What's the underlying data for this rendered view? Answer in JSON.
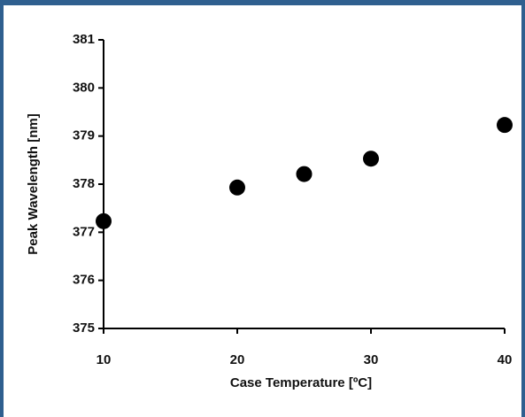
{
  "chart_data": {
    "type": "scatter",
    "x_label": "Case Temperature [ºC]",
    "y_label": "Peak Wavelength [nm]",
    "x": [
      10,
      20,
      25,
      30,
      40
    ],
    "values": [
      377.23,
      377.93,
      378.21,
      378.53,
      379.23
    ],
    "color": "#000000",
    "xlim": [
      10,
      40
    ],
    "xticks": [
      10,
      20,
      30,
      40
    ],
    "ylim": [
      375,
      381
    ],
    "yticks": [
      375,
      376,
      377,
      378,
      379,
      380,
      381
    ],
    "grid": false
  }
}
